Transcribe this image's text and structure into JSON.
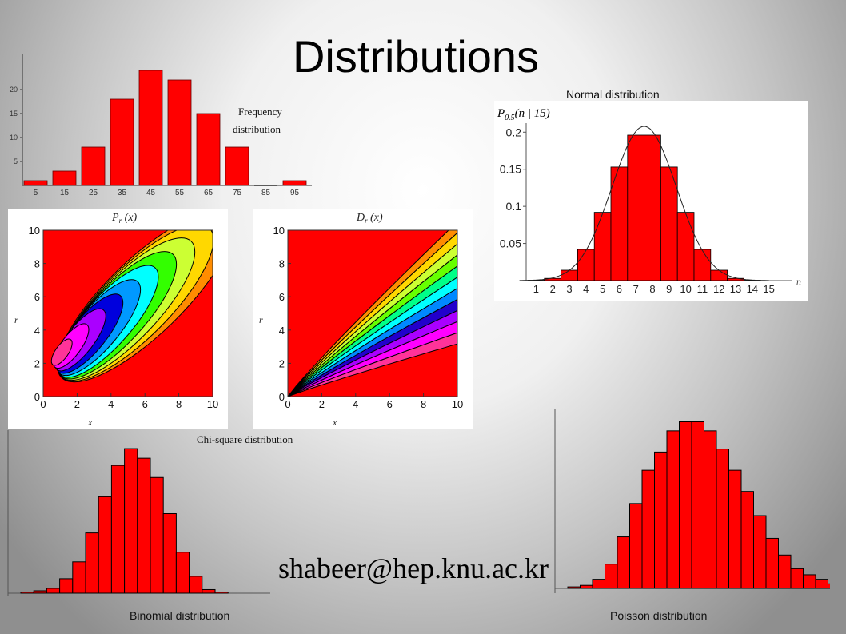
{
  "slide": {
    "title": "Distributions",
    "email": "shabeer@hep.knu.ac.kr",
    "captions": {
      "frequency": "Frequency distribution",
      "frequency_line1": "Frequency",
      "frequency_line2": "distribution",
      "normal": "Normal distribution",
      "chisquare": "Chi-square distribution",
      "binomial": "Binomial  distribution",
      "poisson": "Poisson distribution"
    }
  },
  "colors": {
    "bar": "#ff0000",
    "bar_outline": "#000000"
  },
  "chart_data": [
    {
      "id": "frequency",
      "type": "bar",
      "categories": [
        "5",
        "15",
        "25",
        "35",
        "45",
        "55",
        "65",
        "75",
        "85",
        "95"
      ],
      "values": [
        1,
        3,
        8,
        18,
        24,
        22,
        15,
        8,
        0,
        1
      ],
      "yticks": [
        "5",
        "10",
        "15",
        "20"
      ],
      "ylim": [
        0,
        25
      ],
      "title": "",
      "xlabel": "",
      "ylabel": ""
    },
    {
      "id": "normal",
      "type": "bar",
      "title": "P0.5(n | 15)",
      "title_main": "P",
      "title_sub": "0.5",
      "title_rest": "(n | 15)",
      "categories": [
        "1",
        "2",
        "3",
        "4",
        "5",
        "6",
        "7",
        "8",
        "9",
        "10",
        "11",
        "12",
        "13",
        "14",
        "15"
      ],
      "values": [
        0.0005,
        0.003,
        0.014,
        0.042,
        0.092,
        0.153,
        0.196,
        0.196,
        0.153,
        0.092,
        0.042,
        0.014,
        0.003,
        0.0005,
        0.0
      ],
      "ylim": [
        0,
        0.21
      ],
      "yticks": [
        "0.05",
        "0.1",
        "0.15",
        "0.2"
      ],
      "ytick_values": [
        0.05,
        0.1,
        0.15,
        0.2
      ],
      "xlabel": "n",
      "overlay": "normal curve"
    },
    {
      "id": "pr",
      "type": "heatmap",
      "title": "Pr (x)",
      "title_main": "P",
      "title_sub": "r",
      "title_rest": " (x)",
      "xlabel": "x",
      "ylabel": "r",
      "xlim": [
        0,
        10
      ],
      "ylim": [
        0,
        10
      ],
      "xticks": [
        "0",
        "2",
        "4",
        "6",
        "8",
        "10"
      ],
      "yticks": [
        "0",
        "2",
        "4",
        "6",
        "8",
        "10"
      ],
      "levels": [
        "#ff0000",
        "#ff8c00",
        "#ffd800",
        "#ccff33",
        "#33ff00",
        "#00ffff",
        "#0099ff",
        "#0000dd",
        "#aa00ff",
        "#ff00ff",
        "#ff3399"
      ]
    },
    {
      "id": "dr",
      "type": "heatmap",
      "title": "Dr (x)",
      "title_main": "D",
      "title_sub": "r",
      "title_rest": " (x)",
      "xlabel": "x",
      "ylabel": "r",
      "xlim": [
        0,
        10
      ],
      "ylim": [
        0,
        10
      ],
      "xticks": [
        "0",
        "2",
        "4",
        "6",
        "8",
        "10"
      ],
      "yticks": [
        "0",
        "2",
        "4",
        "6",
        "8",
        "10"
      ],
      "levels": [
        "#ff0000",
        "#ff8c00",
        "#ffd800",
        "#ccff33",
        "#66ff00",
        "#00ff88",
        "#00ffff",
        "#0088ff",
        "#2200cc",
        "#aa00ff",
        "#ff00ff",
        "#ff3399"
      ]
    },
    {
      "id": "binomial",
      "type": "bar",
      "values": [
        0.1,
        0.2,
        0.4,
        1.2,
        2.6,
        5.0,
        8.0,
        10.6,
        12.0,
        11.2,
        9.6,
        6.6,
        3.4,
        1.4,
        0.3,
        0.1
      ],
      "ylim": [
        0,
        13
      ]
    },
    {
      "id": "poisson",
      "type": "bar",
      "values": [
        0.1,
        0.2,
        0.6,
        1.6,
        3.4,
        5.6,
        7.8,
        9.0,
        10.4,
        11.0,
        11.0,
        10.4,
        9.2,
        7.8,
        6.4,
        4.8,
        3.3,
        2.2,
        1.3,
        0.9,
        0.6,
        0.3
      ],
      "ylim": [
        0,
        11.5
      ]
    }
  ]
}
